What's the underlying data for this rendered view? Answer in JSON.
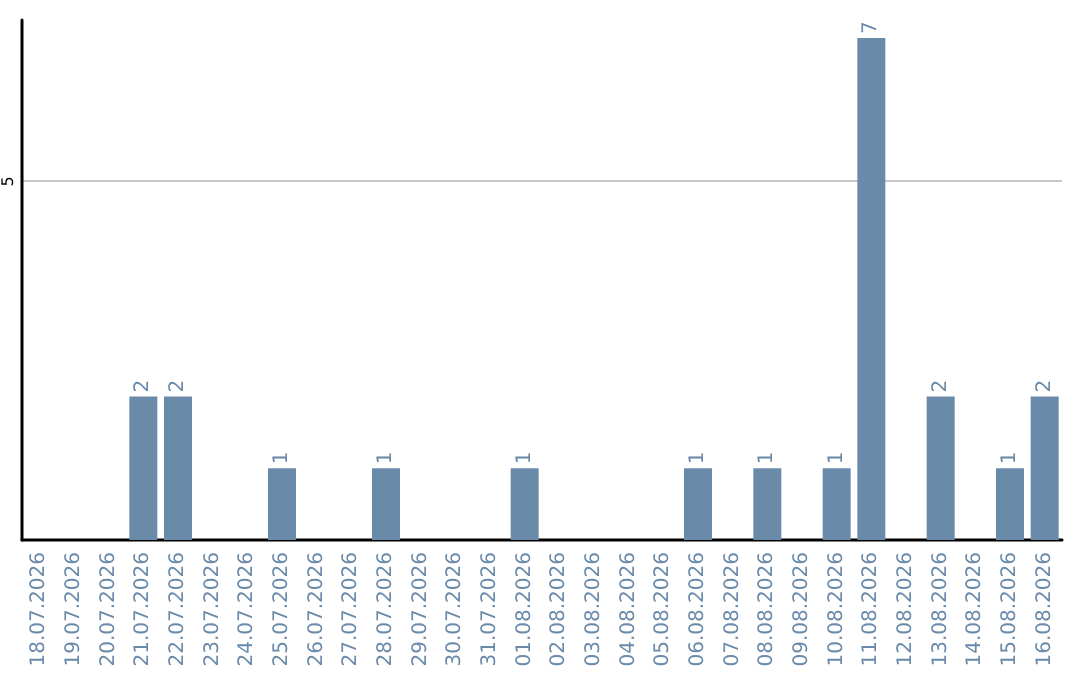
{
  "chart_data": {
    "type": "bar",
    "categories": [
      "18.07.2026",
      "19.07.2026",
      "20.07.2026",
      "21.07.2026",
      "22.07.2026",
      "23.07.2026",
      "24.07.2026",
      "25.07.2026",
      "26.07.2026",
      "27.07.2026",
      "28.07.2026",
      "29.07.2026",
      "30.07.2026",
      "31.07.2026",
      "01.08.2026",
      "02.08.2026",
      "03.08.2026",
      "04.08.2026",
      "05.08.2026",
      "06.08.2026",
      "07.08.2026",
      "08.08.2026",
      "09.08.2026",
      "10.08.2026",
      "11.08.2026",
      "12.08.2026",
      "13.08.2026",
      "14.08.2026",
      "15.08.2026",
      "16.08.2026"
    ],
    "values": [
      null,
      null,
      null,
      2,
      2,
      null,
      null,
      1,
      null,
      null,
      1,
      null,
      null,
      null,
      1,
      null,
      null,
      null,
      null,
      1,
      null,
      1,
      null,
      1,
      7,
      null,
      2,
      null,
      1,
      2
    ],
    "color": "#6a8aaa",
    "ylim": [
      0,
      7.25
    ],
    "yticks": [
      5
    ],
    "grid": "y",
    "data_labels": true
  }
}
